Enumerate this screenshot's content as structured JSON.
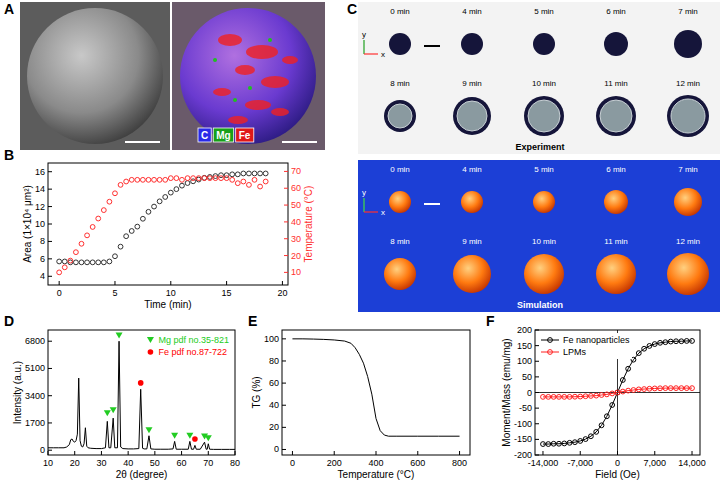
{
  "panel_a": {
    "panel": "A",
    "legend": [
      {
        "name": "C",
        "color": "#2a2ae8"
      },
      {
        "name": "Mg",
        "color": "#18a018"
      },
      {
        "name": "Fe",
        "color": "#e01818"
      }
    ]
  },
  "panel_c": {
    "panel": "C",
    "times": [
      "0 min",
      "4 min",
      "5 min",
      "6 min",
      "7 min",
      "8 min",
      "9 min",
      "10 min",
      "11 min",
      "12 min"
    ],
    "rows": [
      "Experiment",
      "Simulation"
    ],
    "axes": [
      "x",
      "y"
    ]
  },
  "chart_data": [
    {
      "panel": "B",
      "type": "scatter",
      "x_label": "Time (min)",
      "y_label": "Area (1×10⁴ μm²)",
      "y2_label": "Temperature (°C)",
      "xlim": [
        -1,
        20.5
      ],
      "xticks": [
        0,
        5,
        10,
        15,
        20
      ],
      "ylim": [
        3,
        17
      ],
      "yticks": [
        4,
        6,
        8,
        10,
        12,
        14,
        16
      ],
      "y2lim": [
        2.5,
        75
      ],
      "y2ticks": [
        10,
        20,
        30,
        40,
        50,
        60,
        70
      ],
      "grid": false,
      "x": [
        0,
        0.5,
        1,
        1.5,
        2,
        2.5,
        3,
        3.5,
        4,
        4.5,
        5,
        5.5,
        6,
        6.5,
        7,
        7.5,
        8,
        8.5,
        9,
        9.5,
        10,
        10.5,
        11,
        11.5,
        12,
        12.5,
        13,
        13.5,
        14,
        14.5,
        15,
        15.5,
        16,
        16.5,
        17,
        17.5,
        18,
        18.5
      ],
      "series": [
        {
          "color": "#333333",
          "marker": "open_circle",
          "values": [
            5.7,
            5.7,
            5.6,
            5.6,
            5.6,
            5.6,
            5.6,
            5.6,
            5.6,
            5.7,
            6.3,
            7.4,
            8.6,
            9.2,
            9.7,
            10.6,
            11.4,
            12,
            12.6,
            13.1,
            13.6,
            14,
            14.4,
            14.7,
            14.9,
            15.1,
            15.3,
            15.4,
            15.5,
            15.6,
            15.6,
            15.7,
            15.7,
            15.8,
            15.8,
            15.8,
            15.8,
            15.8
          ]
        },
        {
          "color": "#ff3030",
          "marker": "open_circle",
          "axis": "y2",
          "values": [
            10,
            13,
            17,
            22,
            27,
            32,
            37,
            42,
            47,
            52,
            57,
            62,
            64,
            65,
            65,
            65,
            65,
            65,
            65,
            65,
            66,
            66,
            65,
            66,
            66,
            66,
            66,
            66,
            66,
            66,
            66,
            65,
            63,
            64,
            62,
            65,
            61,
            64
          ]
        }
      ]
    },
    {
      "panel": "D",
      "type": "line",
      "x_label": "2θ (degree)",
      "y_label": "Intensity (a.u.)",
      "xlim": [
        10,
        80
      ],
      "xticks": [
        10,
        20,
        30,
        40,
        50,
        60,
        70,
        80
      ],
      "ylim": [
        -300,
        7500
      ],
      "yticks": [
        0,
        1700,
        3400,
        5100,
        6800
      ],
      "grid": false,
      "legend": "top-right",
      "series": [
        {
          "type": "line",
          "color": "#000000",
          "x": [
            10,
            12,
            14,
            16,
            17,
            18,
            18.5,
            19,
            19.5,
            20,
            20.5,
            21,
            21.5,
            22,
            22.5,
            23,
            23.5,
            24,
            24.5,
            25,
            26,
            28,
            30,
            31.5,
            32.2,
            32.8,
            33.5,
            34.4,
            35,
            36,
            36.6,
            37.2,
            38,
            40,
            42,
            44,
            44.7,
            45.4,
            46,
            47,
            47.8,
            48.5,
            50,
            52,
            55,
            56.8,
            57.4,
            58,
            60,
            62.5,
            63.1,
            63.7,
            64.5,
            65,
            65.5,
            67,
            68.6,
            69.2,
            69.6,
            70,
            70.5,
            72,
            75,
            78,
            80
          ],
          "values": [
            150,
            150,
            150,
            150,
            200,
            350,
            650,
            700,
            550,
            500,
            600,
            1000,
            4500,
            600,
            250,
            200,
            400,
            1400,
            250,
            150,
            120,
            100,
            100,
            150,
            1800,
            150,
            150,
            2000,
            150,
            150,
            6800,
            200,
            100,
            80,
            80,
            100,
            3800,
            120,
            80,
            80,
            900,
            80,
            60,
            60,
            60,
            80,
            550,
            60,
            60,
            60,
            550,
            60,
            60,
            300,
            60,
            60,
            500,
            60,
            60,
            400,
            60,
            50,
            50,
            50,
            50
          ]
        },
        {
          "name": "Mg pdf no.35-821",
          "type": "scatter",
          "marker": "triangle_down",
          "color": "#22cc22",
          "x": [
            32.2,
            34.4,
            36.6,
            47.8,
            57.4,
            63.1,
            68.6,
            70
          ],
          "values": [
            2300,
            2500,
            7150,
            1250,
            900,
            900,
            850,
            750
          ]
        },
        {
          "name": "Fe pdf no.87-722",
          "type": "scatter",
          "marker": "circle",
          "color": "#ff0000",
          "x": [
            44.7,
            65
          ],
          "values": [
            4200,
            700
          ]
        }
      ]
    },
    {
      "panel": "E",
      "type": "line",
      "x_label": "Temperature (°C)",
      "y_label": "TG (%)",
      "xlim": [
        -50,
        850
      ],
      "xticks": [
        0,
        200,
        400,
        600,
        800
      ],
      "ylim": [
        -5,
        108
      ],
      "yticks": [
        0,
        20,
        40,
        60,
        80,
        100
      ],
      "grid": false,
      "x": [
        0,
        50,
        100,
        150,
        200,
        250,
        280,
        300,
        320,
        340,
        360,
        380,
        400,
        420,
        440,
        460,
        500,
        600,
        700,
        800
      ],
      "series": [
        {
          "color": "#000000",
          "values": [
            100,
            100,
            99.8,
            99.5,
            99,
            98,
            96,
            92,
            86,
            78,
            66,
            50,
            28,
            17,
            13,
            12,
            12,
            12,
            12,
            12
          ]
        }
      ]
    },
    {
      "panel": "F",
      "type": "line",
      "x_label": "Field (Oe)",
      "y_label": "Moment/Mass (emu/mg)",
      "xlim": [
        -15500,
        15500
      ],
      "xticks": [
        {
          "value": -14000,
          "label": "-14,000"
        },
        {
          "value": -7000,
          "label": "-7,000"
        },
        0,
        {
          "value": 7000,
          "label": "7,000"
        },
        {
          "value": 14000,
          "label": "14,000"
        }
      ],
      "ylim": [
        -200,
        200
      ],
      "yticks": [
        -200,
        -150,
        -100,
        -50,
        0,
        50,
        100,
        150,
        200
      ],
      "grid": false,
      "legend": "top-left",
      "x": [
        -14000,
        -13000,
        -12000,
        -11000,
        -10000,
        -9000,
        -8000,
        -7000,
        -6000,
        -5000,
        -4000,
        -3000,
        -2000,
        -1000,
        0,
        1000,
        2000,
        3000,
        4000,
        5000,
        6000,
        7000,
        8000,
        9000,
        10000,
        11000,
        12000,
        13000,
        14000
      ],
      "series": [
        {
          "name": "Fe nanoparticles",
          "color": "#000000",
          "marker": "open_circle",
          "values": [
            -165,
            -165,
            -164,
            -164,
            -163,
            -161,
            -159,
            -155,
            -149,
            -140,
            -126,
            -105,
            -76,
            -40,
            0,
            40,
            76,
            105,
            126,
            140,
            149,
            155,
            159,
            161,
            163,
            164,
            164,
            165,
            165
          ]
        },
        {
          "name": "LPMs",
          "color": "#ff2020",
          "marker": "open_circle",
          "values": [
            -14,
            -14,
            -14,
            -14,
            -14,
            -14,
            -13.5,
            -13,
            -12,
            -11,
            -10,
            -8,
            -6,
            -3,
            0,
            3,
            6,
            8,
            10,
            11,
            12,
            13,
            13.5,
            14,
            14,
            14,
            14,
            14,
            14
          ]
        }
      ]
    }
  ]
}
